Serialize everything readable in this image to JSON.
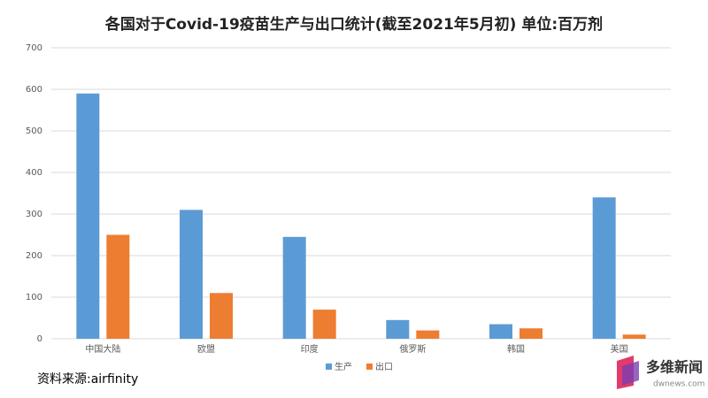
{
  "chart_data": {
    "type": "bar",
    "title": "各国对于Covid-19疫苗生产与出口统计(截至2021年5月初) 单位:百万剂",
    "categories": [
      "中国大陆",
      "欧盟",
      "印度",
      "俄罗斯",
      "韩国",
      "美国"
    ],
    "series": [
      {
        "name": "生产",
        "color": "#5b9bd5",
        "values": [
          590,
          310,
          245,
          45,
          35,
          340
        ]
      },
      {
        "name": "出口",
        "color": "#ed7d31",
        "values": [
          250,
          110,
          70,
          20,
          25,
          10
        ]
      }
    ],
    "ylim": [
      0,
      700
    ],
    "yticks": [
      0,
      100,
      200,
      300,
      400,
      500,
      600,
      700
    ],
    "grid": true,
    "legend": "bottom"
  },
  "source": "资料来源:airfinity",
  "logo": {
    "name": "多维新闻",
    "url": "dwnews.com"
  }
}
